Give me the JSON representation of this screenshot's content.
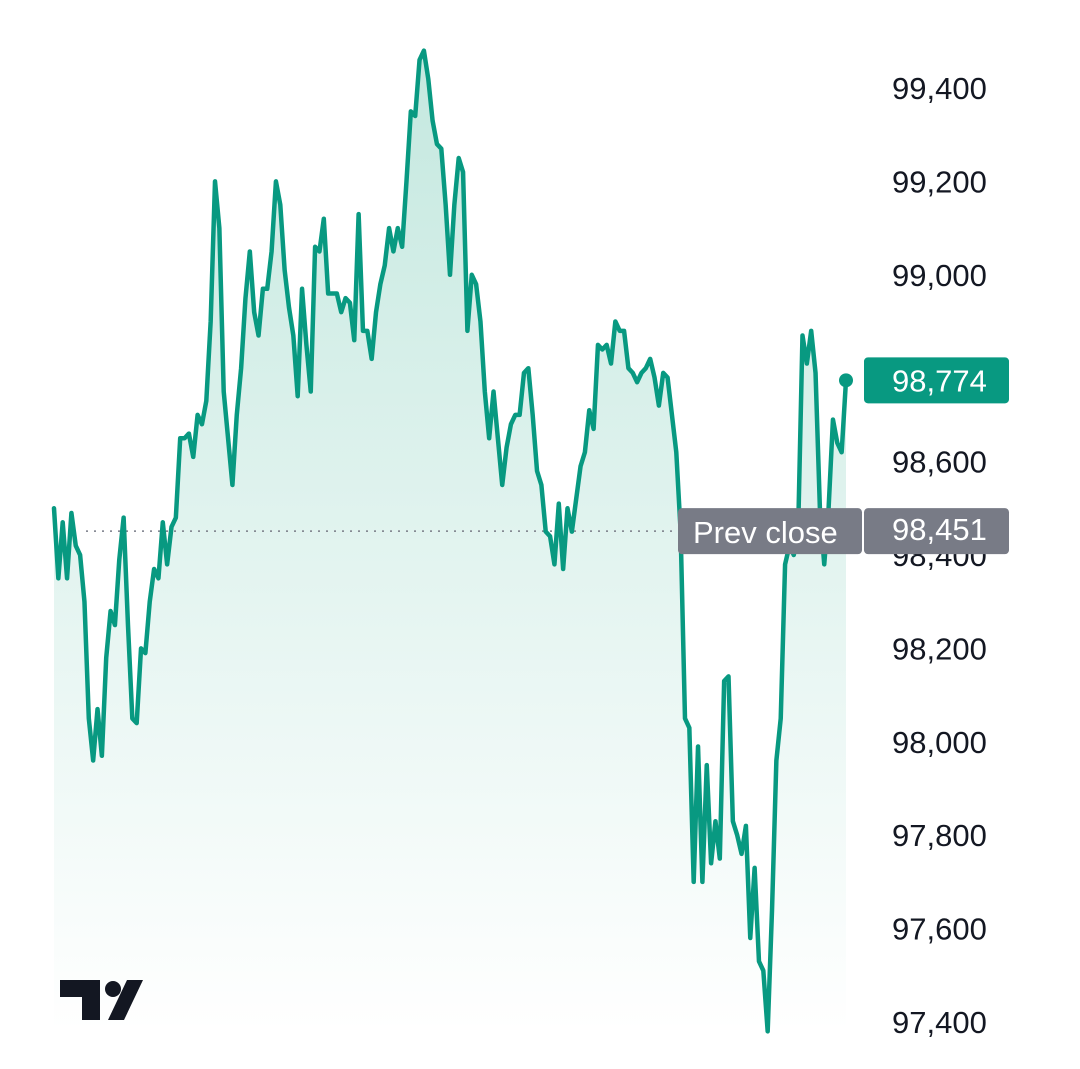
{
  "chart_data": {
    "type": "area",
    "ylim": [
      97350,
      99500
    ],
    "y_ticks": [
      97400,
      97600,
      97800,
      98000,
      98200,
      98400,
      98600,
      98800,
      99000,
      99200,
      99400
    ],
    "y_tick_labels": [
      "97,400",
      "97,600",
      "97,800",
      "98,000",
      "98,200",
      "98,400",
      "98,600",
      "98,800",
      "99,000",
      "99,200",
      "99,400"
    ],
    "series": [
      {
        "values": [
          98500,
          98350,
          98470,
          98350,
          98490,
          98420,
          98400,
          98300,
          98050,
          97960,
          98070,
          97970,
          98180,
          98280,
          98250,
          98390,
          98480,
          98250,
          98050,
          98040,
          98200,
          98190,
          98300,
          98370,
          98350,
          98470,
          98380,
          98460,
          98480,
          98650,
          98650,
          98660,
          98610,
          98700,
          98680,
          98730,
          98900,
          99200,
          99100,
          98750,
          98650,
          98550,
          98700,
          98800,
          98950,
          99050,
          98920,
          98870,
          98970,
          98970,
          99050,
          99200,
          99150,
          99010,
          98930,
          98870,
          98740,
          98970,
          98850,
          98750,
          99060,
          99050,
          99120,
          98960,
          98960,
          98960,
          98920,
          98950,
          98940,
          98860,
          99130,
          98880,
          98880,
          98820,
          98920,
          98980,
          99020,
          99100,
          99050,
          99100,
          99060,
          99200,
          99350,
          99340,
          99460,
          99480,
          99420,
          99330,
          99280,
          99270,
          99150,
          99000,
          99150,
          99250,
          99220,
          98880,
          99000,
          98980,
          98900,
          98750,
          98650,
          98750,
          98650,
          98550,
          98630,
          98680,
          98700,
          98700,
          98790,
          98800,
          98700,
          98580,
          98550,
          98450,
          98440,
          98380,
          98510,
          98370,
          98500,
          98450,
          98520,
          98590,
          98620,
          98710,
          98670,
          98850,
          98840,
          98850,
          98810,
          98900,
          98880,
          98880,
          98800,
          98790,
          98770,
          98790,
          98800,
          98820,
          98780,
          98720,
          98790,
          98780,
          98700,
          98620,
          98450,
          98050,
          98030,
          97700,
          97990,
          97700,
          97950,
          97740,
          97830,
          97750,
          98130,
          98140,
          97830,
          97800,
          97760,
          97820,
          97580,
          97730,
          97530,
          97510,
          97380,
          97640,
          97960,
          98050,
          98380,
          98420,
          98400,
          98450,
          98870,
          98810,
          98880,
          98790,
          98500,
          98380,
          98500,
          98690,
          98640,
          98620,
          98774
        ]
      }
    ],
    "last_value": 98774,
    "last_value_label": "98,774",
    "prev_close": 98451,
    "prev_close_label": "98,451",
    "prev_close_text": "Prev close",
    "grid": false
  },
  "colors": {
    "line": "#089981",
    "area_top": "#c4e8df",
    "area_bottom": "#ffffff",
    "last_badge": "#089981",
    "prev_badge": "#787b86",
    "prev_line": "#787b86",
    "axis_text": "#131722",
    "logo": "#131722"
  },
  "logo": {
    "name": "tradingview-logo-icon"
  }
}
